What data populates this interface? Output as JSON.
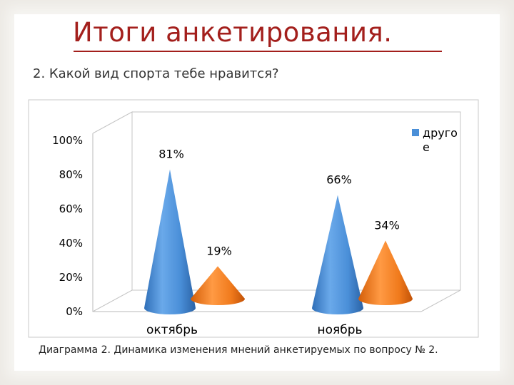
{
  "slide": {
    "title": "Итоги анкетирования.",
    "question": "2. Какой вид спорта тебе нравится?",
    "caption": "Диаграмма 2. Динамика изменения мнений анкетируемых по вопросу № 2."
  },
  "chart_data": {
    "type": "bar",
    "shape": "3d-cone",
    "categories": [
      "октябрь",
      "ноябрь"
    ],
    "series": [
      {
        "name": "",
        "color": "#4a8fd8",
        "values": [
          81,
          66
        ],
        "labels": [
          "81%",
          "66%"
        ]
      },
      {
        "name": "",
        "color": "#f07a1c",
        "values": [
          19,
          34
        ],
        "labels": [
          "19%",
          "34%"
        ]
      }
    ],
    "ylim": [
      0,
      100
    ],
    "yticks": [
      "0%",
      "20%",
      "40%",
      "60%",
      "80%",
      "100%"
    ],
    "legend": {
      "position": "top-right",
      "entries": [
        {
          "text": "друго\nе",
          "color": "#4a8fd8"
        }
      ]
    },
    "grid": false
  }
}
